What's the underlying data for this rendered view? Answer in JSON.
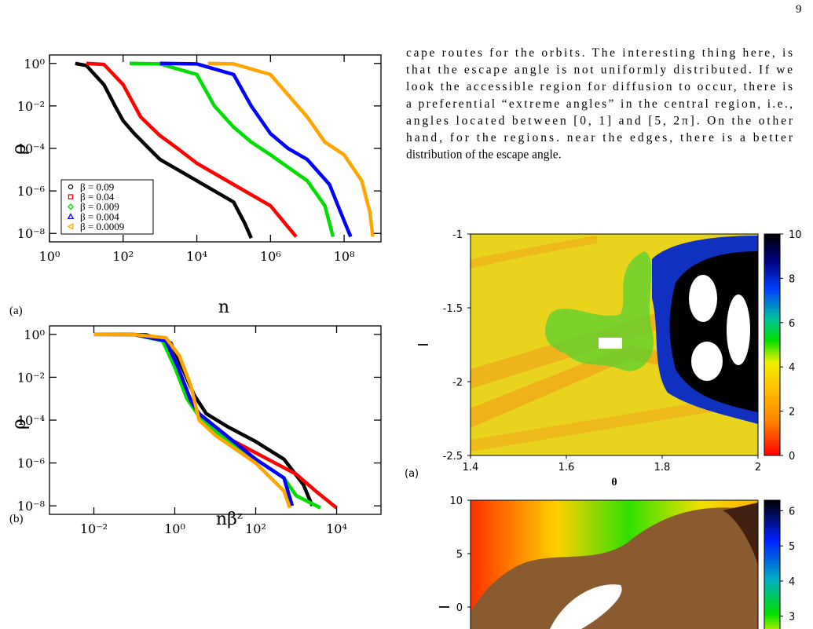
{
  "page_number": "9",
  "paragraph": [
    "cape routes for the orbits. The interesting thing here, is",
    "that the escape angle is not uniformly distributed. If we",
    "look the accessible region for diffusion to occur, there is",
    "a preferential “extreme angles” in the central region, i.e.,",
    "angles located between [0, 1] and [5, 2π].  On the other",
    "hand, for the regions.  near the edges, there is a better",
    "distribution of the escape angle."
  ],
  "chart_data": [
    {
      "type": "line",
      "panel_label": "(a)",
      "xlabel": "n",
      "ylabel": "ρ",
      "xscale": "log",
      "yscale": "log",
      "xlim": [
        1,
        1000000000
      ],
      "ylim": [
        4e-09,
        2.5
      ],
      "xticks": [
        {
          "value": 1,
          "label": "10⁰"
        },
        {
          "value": 100,
          "label": "10²"
        },
        {
          "value": 10000,
          "label": "10⁴"
        },
        {
          "value": 1000000,
          "label": "10⁶"
        },
        {
          "value": 100000000,
          "label": "10⁸"
        }
      ],
      "yticks": [
        {
          "value": 1,
          "label": "10⁰"
        },
        {
          "value": 0.01,
          "label": "10⁻²"
        },
        {
          "value": 0.0001,
          "label": "10⁻⁴"
        },
        {
          "value": 1e-06,
          "label": "10⁻⁶"
        },
        {
          "value": 1e-08,
          "label": "10⁻⁸"
        }
      ],
      "legend_corner": "lower left",
      "series": [
        {
          "name": "β = 0.09",
          "color": "#000000",
          "x": [
            5,
            10,
            30,
            60,
            100,
            200,
            500,
            1000,
            10000,
            100000,
            200000,
            300000
          ],
          "values": [
            1,
            0.8,
            0.1,
            0.01,
            0.002,
            0.0005,
            0.0001,
            3e-05,
            3e-06,
            3e-07,
            3e-08,
            6e-09
          ]
        },
        {
          "name": "β = 0.04",
          "color": "#ff0000",
          "x": [
            10,
            30,
            100,
            300,
            1000,
            3000,
            10000,
            100000,
            1000000,
            3000000,
            5000000
          ],
          "values": [
            1,
            0.9,
            0.1,
            0.003,
            0.0004,
            0.0001,
            2e-05,
            2e-06,
            2e-07,
            2e-08,
            7e-09
          ]
        },
        {
          "name": "β = 0.009",
          "color": "#00dd00",
          "x": [
            150,
            1000,
            10000,
            30000,
            100000,
            300000,
            1000000,
            10000000,
            30000000,
            50000000
          ],
          "values": [
            1,
            0.95,
            0.3,
            0.01,
            0.001,
            0.0002,
            5e-05,
            3e-06,
            2e-07,
            7e-09
          ]
        },
        {
          "name": "β = 0.004",
          "color": "#0000ff",
          "x": [
            1000,
            10000,
            100000,
            300000,
            1000000,
            3000000,
            10000000,
            40000000,
            80000000,
            150000000
          ],
          "values": [
            1,
            0.95,
            0.3,
            0.01,
            0.0005,
            0.0001,
            3e-05,
            2e-06,
            1e-07,
            7e-09
          ]
        },
        {
          "name": "β = 0.0009",
          "color": "#ffa500",
          "x": [
            20000,
            100000,
            1000000,
            10000000,
            30000000,
            100000000,
            300000000,
            500000000,
            600000000
          ],
          "values": [
            1,
            0.95,
            0.3,
            0.003,
            0.0002,
            5e-05,
            3e-06,
            1e-07,
            7e-09
          ]
        }
      ]
    },
    {
      "type": "line",
      "panel_label": "(b)",
      "xlabel": "nβᶻ",
      "ylabel": "ρ",
      "xscale": "log",
      "yscale": "log",
      "xlim": [
        0.0008,
        125000
      ],
      "ylim": [
        4e-09,
        2.5
      ],
      "xticks": [
        {
          "value": 0.01,
          "label": "10⁻²"
        },
        {
          "value": 1,
          "label": "10⁰"
        },
        {
          "value": 100,
          "label": "10²"
        },
        {
          "value": 10000,
          "label": "10⁴"
        }
      ],
      "yticks": [
        {
          "value": 1,
          "label": "10⁰"
        },
        {
          "value": 0.01,
          "label": "10⁻²"
        },
        {
          "value": 0.0001,
          "label": "10⁻⁴"
        },
        {
          "value": 1e-06,
          "label": "10⁻⁶"
        },
        {
          "value": 1e-08,
          "label": "10⁻⁸"
        }
      ],
      "series": [
        {
          "color": "#000000",
          "x": [
            0.05,
            0.2,
            0.8,
            1.5,
            3,
            6,
            20,
            100,
            500,
            1500,
            2500
          ],
          "values": [
            1,
            0.95,
            0.4,
            0.03,
            0.0015,
            0.0002,
            5e-05,
            1e-05,
            1.5e-06,
            1e-07,
            1e-08
          ]
        },
        {
          "color": "#ff0000",
          "x": [
            0.03,
            0.1,
            0.5,
            1,
            2,
            4,
            10,
            100,
            1000,
            3000,
            10000
          ],
          "values": [
            1,
            0.98,
            0.6,
            0.05,
            0.002,
            0.00015,
            3e-05,
            3e-06,
            3e-07,
            5e-08,
            8e-09
          ]
        },
        {
          "color": "#00dd00",
          "x": [
            0.012,
            0.1,
            0.5,
            1,
            2,
            4,
            10,
            100,
            500,
            1000,
            4000
          ],
          "values": [
            1,
            0.98,
            0.5,
            0.03,
            0.001,
            0.00015,
            3e-05,
            1.5e-06,
            2e-07,
            3e-08,
            8e-09
          ]
        },
        {
          "color": "#0000ff",
          "x": [
            0.01,
            0.1,
            0.6,
            1.2,
            2.5,
            4,
            10,
            100,
            500,
            800
          ],
          "values": [
            1,
            0.98,
            0.5,
            0.03,
            0.0008,
            0.0002,
            5e-05,
            1.5e-06,
            2e-07,
            1e-08
          ]
        },
        {
          "color": "#ffa500",
          "x": [
            0.01,
            0.1,
            0.6,
            1.3,
            2.5,
            4,
            10,
            100,
            500,
            700
          ],
          "values": [
            1,
            0.98,
            0.7,
            0.1,
            0.004,
            0.0001,
            2e-05,
            1e-06,
            5e-08,
            8e-09
          ]
        }
      ]
    },
    {
      "type": "heatmap",
      "panel_label": "(a)",
      "xlabel": "θ",
      "ylabel": "I",
      "xlim": [
        1.4,
        2
      ],
      "ylim": [
        -2.5,
        -1
      ],
      "xticks": [
        1.4,
        1.6,
        1.8,
        2
      ],
      "yticks": [
        -1,
        -1.5,
        -2,
        -2.5
      ],
      "colorbar_lim": [
        0,
        10
      ],
      "colorbar_ticks": [
        0,
        2,
        4,
        6,
        8,
        10
      ]
    },
    {
      "type": "heatmap",
      "ylabel": "I",
      "ylim": [
        -2.5,
        10
      ],
      "yticks": [
        10,
        5,
        0
      ],
      "colorbar_lim": [
        2.5,
        6.3
      ],
      "colorbar_ticks": [
        6,
        5,
        4,
        3
      ]
    }
  ]
}
